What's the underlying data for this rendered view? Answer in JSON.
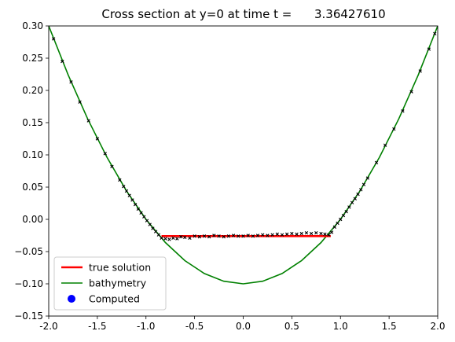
{
  "chart_data": {
    "type": "line",
    "title": "Cross section at y=0 at time t =      3.36427610",
    "xlabel": "",
    "ylabel": "",
    "xlim": [
      -2.0,
      2.0
    ],
    "ylim": [
      -0.15,
      0.3
    ],
    "x_ticks": [
      "-2.0",
      "-1.5",
      "-1.0",
      "-0.5",
      "0.0",
      "0.5",
      "1.0",
      "1.5",
      "2.0"
    ],
    "y_ticks": [
      "−0.15",
      "−0.10",
      "−0.05",
      "0.00",
      "0.05",
      "0.10",
      "0.15",
      "0.20",
      "0.25",
      "0.30"
    ],
    "grid": false,
    "legend_position": "lower-left",
    "series": [
      {
        "name": "true solution",
        "kind": "line",
        "color": "#ff0000",
        "x": [
          -0.84,
          0.9
        ],
        "y": [
          -0.026,
          -0.026
        ]
      },
      {
        "name": "bathymetry",
        "kind": "line",
        "color": "#008000",
        "formula": "0.1*x^2 - 0.1",
        "x": [
          -2.0,
          -1.8,
          -1.6,
          -1.4,
          -1.2,
          -1.0,
          -0.8,
          -0.6,
          -0.4,
          -0.2,
          0.0,
          0.2,
          0.4,
          0.6,
          0.8,
          1.0,
          1.2,
          1.4,
          1.6,
          1.8,
          2.0
        ],
        "y": [
          0.3,
          0.224,
          0.156,
          0.096,
          0.044,
          0.0,
          -0.036,
          -0.064,
          -0.084,
          -0.096,
          -0.1,
          -0.096,
          -0.084,
          -0.064,
          -0.036,
          0.0,
          0.044,
          0.096,
          0.156,
          0.224,
          0.3
        ]
      },
      {
        "name": "Computed",
        "kind": "scatter",
        "color": "#0000ff",
        "marker_color": "#000000",
        "x": [
          -1.95,
          -1.86,
          -1.77,
          -1.68,
          -1.59,
          -1.5,
          -1.42,
          -1.35,
          -1.27,
          -1.23,
          -1.2,
          -1.17,
          -1.14,
          -1.11,
          -1.08,
          -1.05,
          -1.02,
          -0.99,
          -0.96,
          -0.93,
          -0.9,
          -0.87,
          -0.84,
          -0.8,
          -0.76,
          -0.72,
          -0.68,
          -0.64,
          -0.6,
          -0.55,
          -0.5,
          -0.45,
          -0.4,
          -0.35,
          -0.3,
          -0.25,
          -0.2,
          -0.15,
          -0.1,
          -0.05,
          0.0,
          0.05,
          0.1,
          0.15,
          0.2,
          0.25,
          0.3,
          0.35,
          0.4,
          0.45,
          0.5,
          0.55,
          0.6,
          0.65,
          0.7,
          0.75,
          0.8,
          0.84,
          0.88,
          0.91,
          0.94,
          0.97,
          1.0,
          1.03,
          1.06,
          1.09,
          1.12,
          1.15,
          1.18,
          1.21,
          1.24,
          1.28,
          1.37,
          1.46,
          1.55,
          1.64,
          1.73,
          1.82,
          1.91,
          1.97
        ],
        "y": [
          0.28,
          0.245,
          0.213,
          0.182,
          0.153,
          0.125,
          0.102,
          0.082,
          0.061,
          0.051,
          0.044,
          0.037,
          0.03,
          0.023,
          0.016,
          0.01,
          0.004,
          -0.002,
          -0.008,
          -0.014,
          -0.019,
          -0.024,
          -0.029,
          -0.03,
          -0.031,
          -0.029,
          -0.03,
          -0.027,
          -0.028,
          -0.029,
          -0.026,
          -0.027,
          -0.026,
          -0.027,
          -0.025,
          -0.026,
          -0.027,
          -0.026,
          -0.025,
          -0.026,
          -0.026,
          -0.025,
          -0.026,
          -0.025,
          -0.024,
          -0.025,
          -0.024,
          -0.023,
          -0.024,
          -0.023,
          -0.022,
          -0.023,
          -0.022,
          -0.021,
          -0.022,
          -0.021,
          -0.022,
          -0.023,
          -0.024,
          -0.02,
          -0.012,
          -0.006,
          0.0,
          0.006,
          0.012,
          0.019,
          0.026,
          0.032,
          0.039,
          0.046,
          0.054,
          0.064,
          0.088,
          0.115,
          0.14,
          0.168,
          0.198,
          0.23,
          0.264,
          0.288
        ]
      }
    ]
  }
}
